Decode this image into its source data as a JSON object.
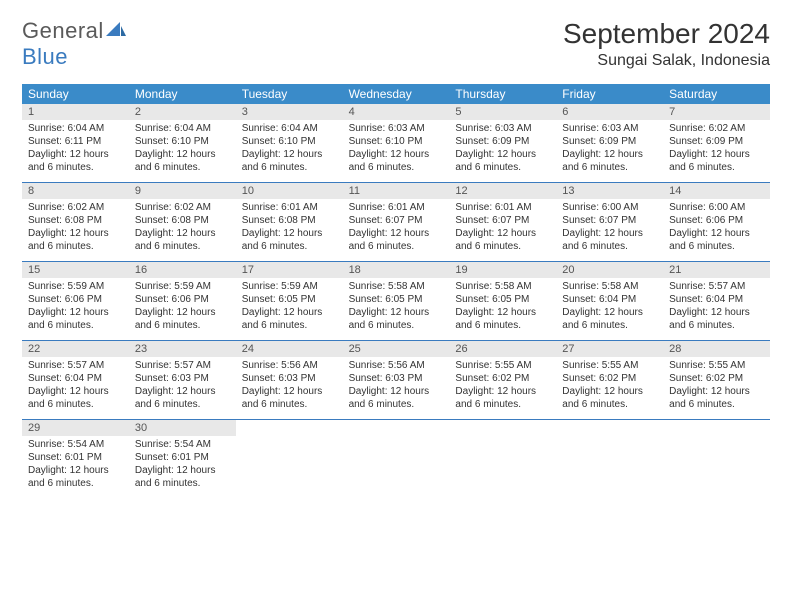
{
  "brand": {
    "general": "General",
    "blue": "Blue"
  },
  "title": "September 2024",
  "location": "Sungai Salak, Indonesia",
  "colors": {
    "header_bg": "#3a8bc9",
    "rule": "#3a7bbf",
    "band": "#e8e8e8",
    "logo_gray": "#5a5a5a",
    "logo_blue": "#3a7bbf"
  },
  "weekdays": [
    "Sunday",
    "Monday",
    "Tuesday",
    "Wednesday",
    "Thursday",
    "Friday",
    "Saturday"
  ],
  "days": [
    {
      "n": 1,
      "sr": "6:04 AM",
      "ss": "6:11 PM",
      "dl": "12 hours and 6 minutes."
    },
    {
      "n": 2,
      "sr": "6:04 AM",
      "ss": "6:10 PM",
      "dl": "12 hours and 6 minutes."
    },
    {
      "n": 3,
      "sr": "6:04 AM",
      "ss": "6:10 PM",
      "dl": "12 hours and 6 minutes."
    },
    {
      "n": 4,
      "sr": "6:03 AM",
      "ss": "6:10 PM",
      "dl": "12 hours and 6 minutes."
    },
    {
      "n": 5,
      "sr": "6:03 AM",
      "ss": "6:09 PM",
      "dl": "12 hours and 6 minutes."
    },
    {
      "n": 6,
      "sr": "6:03 AM",
      "ss": "6:09 PM",
      "dl": "12 hours and 6 minutes."
    },
    {
      "n": 7,
      "sr": "6:02 AM",
      "ss": "6:09 PM",
      "dl": "12 hours and 6 minutes."
    },
    {
      "n": 8,
      "sr": "6:02 AM",
      "ss": "6:08 PM",
      "dl": "12 hours and 6 minutes."
    },
    {
      "n": 9,
      "sr": "6:02 AM",
      "ss": "6:08 PM",
      "dl": "12 hours and 6 minutes."
    },
    {
      "n": 10,
      "sr": "6:01 AM",
      "ss": "6:08 PM",
      "dl": "12 hours and 6 minutes."
    },
    {
      "n": 11,
      "sr": "6:01 AM",
      "ss": "6:07 PM",
      "dl": "12 hours and 6 minutes."
    },
    {
      "n": 12,
      "sr": "6:01 AM",
      "ss": "6:07 PM",
      "dl": "12 hours and 6 minutes."
    },
    {
      "n": 13,
      "sr": "6:00 AM",
      "ss": "6:07 PM",
      "dl": "12 hours and 6 minutes."
    },
    {
      "n": 14,
      "sr": "6:00 AM",
      "ss": "6:06 PM",
      "dl": "12 hours and 6 minutes."
    },
    {
      "n": 15,
      "sr": "5:59 AM",
      "ss": "6:06 PM",
      "dl": "12 hours and 6 minutes."
    },
    {
      "n": 16,
      "sr": "5:59 AM",
      "ss": "6:06 PM",
      "dl": "12 hours and 6 minutes."
    },
    {
      "n": 17,
      "sr": "5:59 AM",
      "ss": "6:05 PM",
      "dl": "12 hours and 6 minutes."
    },
    {
      "n": 18,
      "sr": "5:58 AM",
      "ss": "6:05 PM",
      "dl": "12 hours and 6 minutes."
    },
    {
      "n": 19,
      "sr": "5:58 AM",
      "ss": "6:05 PM",
      "dl": "12 hours and 6 minutes."
    },
    {
      "n": 20,
      "sr": "5:58 AM",
      "ss": "6:04 PM",
      "dl": "12 hours and 6 minutes."
    },
    {
      "n": 21,
      "sr": "5:57 AM",
      "ss": "6:04 PM",
      "dl": "12 hours and 6 minutes."
    },
    {
      "n": 22,
      "sr": "5:57 AM",
      "ss": "6:04 PM",
      "dl": "12 hours and 6 minutes."
    },
    {
      "n": 23,
      "sr": "5:57 AM",
      "ss": "6:03 PM",
      "dl": "12 hours and 6 minutes."
    },
    {
      "n": 24,
      "sr": "5:56 AM",
      "ss": "6:03 PM",
      "dl": "12 hours and 6 minutes."
    },
    {
      "n": 25,
      "sr": "5:56 AM",
      "ss": "6:03 PM",
      "dl": "12 hours and 6 minutes."
    },
    {
      "n": 26,
      "sr": "5:55 AM",
      "ss": "6:02 PM",
      "dl": "12 hours and 6 minutes."
    },
    {
      "n": 27,
      "sr": "5:55 AM",
      "ss": "6:02 PM",
      "dl": "12 hours and 6 minutes."
    },
    {
      "n": 28,
      "sr": "5:55 AM",
      "ss": "6:02 PM",
      "dl": "12 hours and 6 minutes."
    },
    {
      "n": 29,
      "sr": "5:54 AM",
      "ss": "6:01 PM",
      "dl": "12 hours and 6 minutes."
    },
    {
      "n": 30,
      "sr": "5:54 AM",
      "ss": "6:01 PM",
      "dl": "12 hours and 6 minutes."
    }
  ],
  "labels": {
    "sunrise": "Sunrise: ",
    "sunset": "Sunset: ",
    "daylight": "Daylight: "
  }
}
